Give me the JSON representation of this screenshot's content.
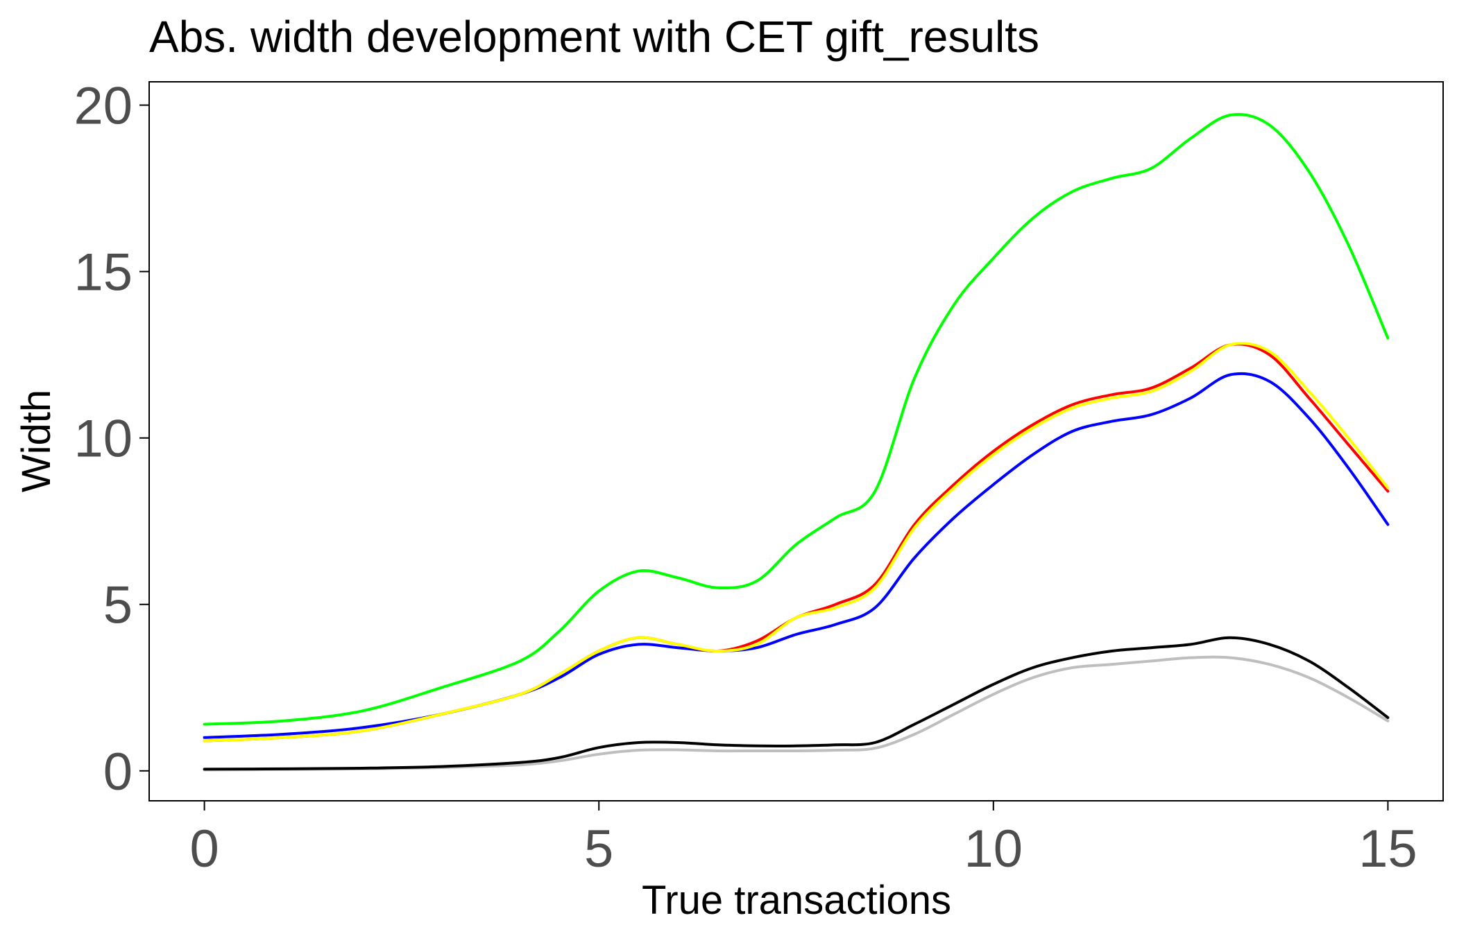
{
  "chart_data": {
    "type": "line",
    "title": "Abs. width development with CET gift_results",
    "xlabel": "True transactions",
    "ylabel": "Width",
    "xlim": [
      -0.7,
      15.7
    ],
    "ylim": [
      -0.9,
      20.7
    ],
    "x_ticks": [
      0,
      5,
      10,
      15
    ],
    "y_ticks": [
      0,
      5,
      10,
      15,
      20
    ],
    "x_tick_labels": [
      "0",
      "5",
      "10",
      "15"
    ],
    "y_tick_labels": [
      "0",
      "5",
      "10",
      "15",
      "20"
    ],
    "grid": false,
    "legend": "none",
    "x": [
      0,
      1,
      2,
      3,
      4,
      4.5,
      5,
      5.5,
      6,
      6.5,
      7,
      7.5,
      8,
      8.5,
      9,
      9.5,
      10,
      10.5,
      11,
      11.5,
      12,
      12.5,
      13,
      13.5,
      14,
      14.5,
      15
    ],
    "series": [
      {
        "color": "#00ff00",
        "values": [
          1.4,
          1.5,
          1.8,
          2.5,
          3.3,
          4.2,
          5.4,
          6.0,
          5.8,
          5.5,
          5.7,
          6.8,
          7.6,
          8.4,
          11.8,
          14.0,
          15.4,
          16.6,
          17.4,
          17.8,
          18.1,
          19.0,
          19.7,
          19.4,
          18.0,
          15.8,
          13.0
        ]
      },
      {
        "color": "#ff0000",
        "values": [
          0.9,
          1.0,
          1.2,
          1.7,
          2.3,
          2.9,
          3.6,
          4.0,
          3.8,
          3.6,
          3.9,
          4.6,
          5.0,
          5.6,
          7.4,
          8.6,
          9.6,
          10.4,
          11.0,
          11.3,
          11.5,
          12.1,
          12.8,
          12.5,
          11.2,
          9.8,
          8.4
        ]
      },
      {
        "color": "#ffff00",
        "values": [
          0.9,
          1.0,
          1.2,
          1.7,
          2.3,
          2.9,
          3.6,
          4.0,
          3.8,
          3.6,
          3.8,
          4.6,
          4.9,
          5.5,
          7.3,
          8.5,
          9.5,
          10.3,
          10.9,
          11.2,
          11.4,
          12.0,
          12.8,
          12.6,
          11.4,
          10.0,
          8.5
        ]
      },
      {
        "color": "#0000ff",
        "values": [
          1.0,
          1.1,
          1.3,
          1.7,
          2.3,
          2.8,
          3.5,
          3.8,
          3.7,
          3.6,
          3.7,
          4.1,
          4.4,
          4.9,
          6.4,
          7.6,
          8.6,
          9.5,
          10.2,
          10.5,
          10.7,
          11.2,
          11.9,
          11.7,
          10.6,
          9.1,
          7.4
        ]
      },
      {
        "color": "#000000",
        "values": [
          0.05,
          0.06,
          0.08,
          0.13,
          0.25,
          0.4,
          0.7,
          0.85,
          0.85,
          0.78,
          0.75,
          0.75,
          0.78,
          0.85,
          1.4,
          2.0,
          2.6,
          3.1,
          3.4,
          3.6,
          3.7,
          3.8,
          4.0,
          3.8,
          3.3,
          2.5,
          1.6
        ]
      },
      {
        "color": "#bebebe",
        "values": [
          0.03,
          0.04,
          0.06,
          0.1,
          0.18,
          0.3,
          0.5,
          0.62,
          0.63,
          0.6,
          0.6,
          0.6,
          0.62,
          0.68,
          1.1,
          1.7,
          2.3,
          2.8,
          3.1,
          3.2,
          3.3,
          3.4,
          3.4,
          3.2,
          2.8,
          2.2,
          1.5
        ]
      }
    ]
  }
}
